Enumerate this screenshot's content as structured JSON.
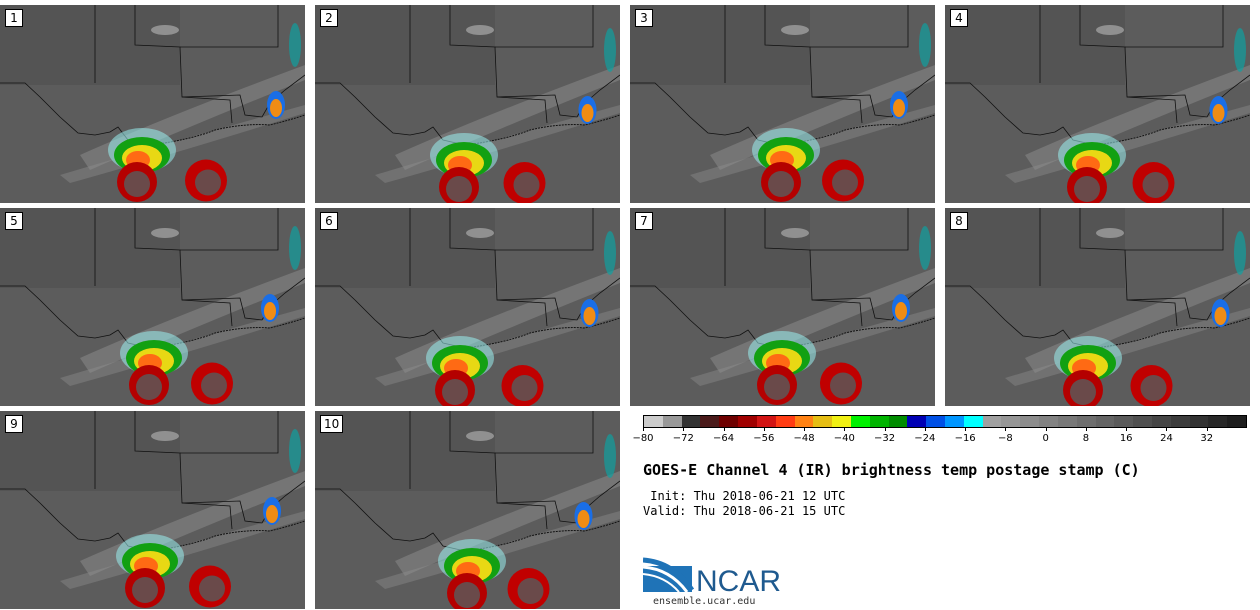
{
  "panels": [
    "1",
    "2",
    "3",
    "4",
    "5",
    "6",
    "7",
    "8",
    "9",
    "10"
  ],
  "legend": {
    "colors": [
      "#cccccc",
      "#999999",
      "#333333",
      "#4a1a1a",
      "#6e0000",
      "#a00000",
      "#d21414",
      "#ff3c14",
      "#ff8214",
      "#e6be14",
      "#f0f014",
      "#00f000",
      "#00b400",
      "#008c00",
      "#0000b4",
      "#0050e6",
      "#0096ff",
      "#00ffff",
      "#a0a0a0",
      "#969696",
      "#8c8c8c",
      "#828282",
      "#787878",
      "#6e6e6e",
      "#646464",
      "#5a5a5a",
      "#505050",
      "#464646",
      "#3c3c3c",
      "#323232",
      "#282828",
      "#1e1e1e"
    ],
    "tick_values": [
      -80,
      -72,
      -64,
      -56,
      -48,
      -40,
      -32,
      -24,
      -16,
      -8,
      0,
      8,
      16,
      24,
      32
    ],
    "tick_labels": [
      "−80",
      "−72",
      "−64",
      "−56",
      "−48",
      "−40",
      "−32",
      "−24",
      "−16",
      "−8",
      "0",
      "8",
      "16",
      "24",
      "32"
    ],
    "min": -80,
    "max": 40
  },
  "title": "GOES-E Channel 4 (IR) brightness temp postage stamp (C)",
  "init_line": " Init: Thu 2018-06-21 12 UTC",
  "valid_line": "Valid: Thu 2018-06-21 15 UTC",
  "logo_text": "NCAR",
  "logo_url": "ensemble.ucar.edu"
}
